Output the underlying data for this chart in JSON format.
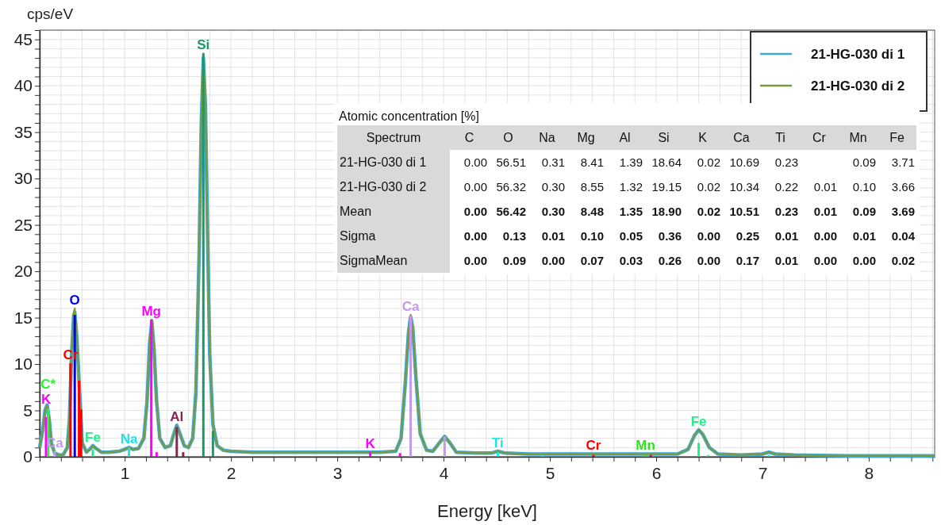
{
  "chart_data": [
    {
      "type": "line",
      "xlabel": "Energy [keV]",
      "ylabel": "cps/eV",
      "xlim": [
        0.2,
        8.62
      ],
      "ylim": [
        0,
        46
      ],
      "grid": true,
      "legend": "top right",
      "xticks": [
        {
          "value": 0.2,
          "label": null
        },
        {
          "value": 0.4,
          "label": null
        },
        {
          "value": 0.6,
          "label": null
        },
        {
          "value": 0.8,
          "label": null
        },
        1,
        {
          "value": 1.2,
          "label": null
        },
        {
          "value": 1.4,
          "label": null
        },
        {
          "value": 1.6,
          "label": null
        },
        {
          "value": 1.8,
          "label": null
        },
        2,
        {
          "value": 2.2,
          "label": null
        },
        {
          "value": 2.4,
          "label": null
        },
        {
          "value": 2.6,
          "label": null
        },
        {
          "value": 2.8,
          "label": null
        },
        3,
        {
          "value": 3.2,
          "label": null
        },
        {
          "value": 3.4,
          "label": null
        },
        {
          "value": 3.6,
          "label": null
        },
        {
          "value": 3.8,
          "label": null
        },
        4,
        {
          "value": 4.2,
          "label": null
        },
        {
          "value": 4.4,
          "label": null
        },
        {
          "value": 4.6,
          "label": null
        },
        {
          "value": 4.8,
          "label": null
        },
        5,
        {
          "value": 5.2,
          "label": null
        },
        {
          "value": 5.4,
          "label": null
        },
        {
          "value": 5.6,
          "label": null
        },
        {
          "value": 5.8,
          "label": null
        },
        6,
        {
          "value": 6.2,
          "label": null
        },
        {
          "value": 6.4,
          "label": null
        },
        {
          "value": 6.6,
          "label": null
        },
        {
          "value": 6.8,
          "label": null
        },
        7,
        {
          "value": 7.2,
          "label": null
        },
        {
          "value": 7.4,
          "label": null
        },
        {
          "value": 7.6,
          "label": null
        },
        {
          "value": 7.8,
          "label": null
        },
        8,
        {
          "value": 8.2,
          "label": null
        },
        {
          "value": 8.4,
          "label": null
        },
        {
          "value": 8.6,
          "label": null
        }
      ],
      "yticks": [
        0,
        {
          "value": 1,
          "label": null
        },
        {
          "value": 2,
          "label": null
        },
        {
          "value": 3,
          "label": null
        },
        {
          "value": 4,
          "label": null
        },
        5,
        {
          "value": 6,
          "label": null
        },
        {
          "value": 7,
          "label": null
        },
        {
          "value": 8,
          "label": null
        },
        {
          "value": 9,
          "label": null
        },
        10,
        {
          "value": 11,
          "label": null
        },
        {
          "value": 12,
          "label": null
        },
        {
          "value": 13,
          "label": null
        },
        {
          "value": 14,
          "label": null
        },
        15,
        {
          "value": 16,
          "label": null
        },
        {
          "value": 17,
          "label": null
        },
        {
          "value": 18,
          "label": null
        },
        {
          "value": 19,
          "label": null
        },
        20,
        {
          "value": 21,
          "label": null
        },
        {
          "value": 22,
          "label": null
        },
        {
          "value": 23,
          "label": null
        },
        {
          "value": 24,
          "label": null
        },
        25,
        {
          "value": 26,
          "label": null
        },
        {
          "value": 27,
          "label": null
        },
        {
          "value": 28,
          "label": null
        },
        {
          "value": 29,
          "label": null
        },
        30,
        {
          "value": 31,
          "label": null
        },
        {
          "value": 32,
          "label": null
        },
        {
          "value": 33,
          "label": null
        },
        {
          "value": 34,
          "label": null
        },
        35,
        {
          "value": 36,
          "label": null
        },
        {
          "value": 37,
          "label": null
        },
        {
          "value": 38,
          "label": null
        },
        {
          "value": 39,
          "label": null
        },
        40,
        {
          "value": 41,
          "label": null
        },
        {
          "value": 42,
          "label": null
        },
        {
          "value": 43,
          "label": null
        },
        {
          "value": 44,
          "label": null
        },
        45,
        {
          "value": 46,
          "label": null
        }
      ],
      "x": [
        0.2,
        0.23,
        0.25,
        0.27,
        0.29,
        0.31,
        0.34,
        0.38,
        0.42,
        0.46,
        0.48,
        0.5,
        0.52,
        0.53,
        0.55,
        0.6,
        0.64,
        0.67,
        0.7,
        0.73,
        0.78,
        0.85,
        0.95,
        1.0,
        1.04,
        1.08,
        1.13,
        1.18,
        1.21,
        1.235,
        1.255,
        1.275,
        1.3,
        1.33,
        1.38,
        1.43,
        1.46,
        1.49,
        1.52,
        1.56,
        1.6,
        1.64,
        1.67,
        1.7,
        1.72,
        1.74,
        1.76,
        1.78,
        1.8,
        1.83,
        1.87,
        1.93,
        2.0,
        2.2,
        2.6,
        3.0,
        3.4,
        3.55,
        3.6,
        3.64,
        3.67,
        3.69,
        3.71,
        3.74,
        3.78,
        3.84,
        3.9,
        3.96,
        4.01,
        4.06,
        4.12,
        4.3,
        4.45,
        4.51,
        4.58,
        4.8,
        5.2,
        5.6,
        6.0,
        6.2,
        6.3,
        6.36,
        6.4,
        6.44,
        6.5,
        6.58,
        6.8,
        7.0,
        7.06,
        7.12,
        7.3,
        7.8,
        8.3,
        8.62
      ],
      "series": [
        {
          "name": "21-HG-030 di 1",
          "color": "#3fa9d6",
          "values": [
            1.0,
            3.0,
            5.0,
            5.6,
            4.0,
            1.5,
            0.4,
            0.2,
            0.2,
            1.0,
            4.0,
            11.0,
            15.2,
            15.6,
            12.8,
            1.5,
            0.5,
            0.8,
            1.2,
            0.9,
            0.5,
            0.5,
            0.6,
            0.8,
            1.0,
            0.8,
            0.9,
            2.0,
            6.0,
            12.3,
            14.6,
            11.8,
            6.0,
            2.0,
            1.0,
            1.2,
            2.4,
            3.4,
            2.5,
            1.2,
            1.0,
            2.0,
            7.0,
            21.8,
            35.6,
            43.0,
            37.6,
            23.8,
            11.0,
            3.5,
            1.2,
            0.7,
            0.6,
            0.5,
            0.5,
            0.5,
            0.5,
            0.6,
            2.0,
            8.0,
            13.4,
            15.1,
            13.9,
            8.5,
            2.5,
            0.7,
            0.6,
            1.5,
            2.2,
            1.5,
            0.5,
            0.4,
            0.4,
            0.6,
            0.4,
            0.3,
            0.3,
            0.3,
            0.3,
            0.3,
            0.8,
            2.3,
            2.9,
            2.4,
            1.0,
            0.3,
            0.2,
            0.3,
            0.5,
            0.3,
            0.2,
            0.1,
            0.1,
            0.1
          ]
        },
        {
          "name": "21-HG-030 di 2",
          "color": "#7a9a3c",
          "values": [
            1.0,
            3.0,
            5.0,
            5.5,
            4.0,
            1.5,
            0.4,
            0.2,
            0.2,
            1.0,
            4.0,
            11.0,
            15.5,
            16.0,
            13.0,
            1.5,
            0.5,
            0.8,
            1.2,
            0.9,
            0.5,
            0.5,
            0.6,
            0.8,
            1.0,
            0.8,
            0.9,
            2.0,
            6.0,
            12.5,
            14.8,
            12.0,
            6.0,
            2.0,
            1.0,
            1.2,
            2.3,
            3.3,
            2.4,
            1.2,
            1.0,
            2.0,
            7.0,
            22.0,
            36.0,
            43.5,
            38.0,
            24.0,
            11.0,
            3.5,
            1.2,
            0.7,
            0.6,
            0.5,
            0.5,
            0.5,
            0.5,
            0.6,
            2.0,
            8.0,
            13.5,
            15.3,
            14.0,
            8.5,
            2.5,
            0.7,
            0.6,
            1.5,
            2.2,
            1.5,
            0.5,
            0.4,
            0.4,
            0.6,
            0.4,
            0.3,
            0.3,
            0.3,
            0.3,
            0.3,
            0.8,
            2.3,
            2.9,
            2.4,
            1.0,
            0.3,
            0.2,
            0.3,
            0.5,
            0.3,
            0.2,
            0.1,
            0.1,
            0.1
          ]
        },
        {
          "type": "bar",
          "x": [
            0.26,
            0.28,
            0.34,
            0.49,
            0.53,
            0.57,
            0.59,
            0.7,
            1.04,
            1.25,
            1.3,
            1.49,
            1.55,
            1.74,
            1.83,
            3.31,
            3.59,
            3.69,
            4.01,
            4.51,
            4.93,
            5.41,
            5.9,
            5.95,
            6.4,
            6.49,
            7.06
          ],
          "values": [
            4.3,
            5.2,
            0.6,
            10.1,
            15.3,
            8.2,
            5.1,
            0.8,
            1.0,
            14.8,
            0.5,
            3.2,
            0.5,
            43.5,
            2.8,
            0.5,
            0.4,
            15.2,
            2.2,
            0.5,
            0.2,
            0.2,
            0.2,
            0.2,
            1.5,
            0.2,
            0.2
          ],
          "value_labels": [
            "K",
            "C*",
            "Ca",
            "Cr",
            "O",
            null,
            null,
            "Fe",
            "Na",
            "Mg",
            null,
            "Al",
            null,
            "Si",
            null,
            "K",
            null,
            "Ca",
            null,
            "Ti",
            null,
            "Cr",
            "Mn",
            null,
            "Fe",
            null,
            null
          ],
          "colors": [
            "#ff00ff",
            "#33ee33",
            "#c49af0",
            "#ff0000",
            "#0000ff",
            "#ff0000",
            "#ff0000",
            "#22ee88",
            "#22e0e8",
            "#ff00ff",
            "#ff00ff",
            "#8b2252",
            "#8b2252",
            "#1a9a6a",
            "#1a9a6a",
            "#ff00ff",
            "#ff00ff",
            "#c49af0",
            "#c49af0",
            "#22e0e8",
            "#22e0e8",
            "#ff0000",
            "#33dd22",
            "#ff0000",
            "#22ee88",
            "#22ee88",
            "#22e0e8"
          ]
        }
      ]
    },
    {
      "type": "heatmap",
      "title": "Atomic concentration [%]",
      "ylabel": "Spectrum",
      "categories": [
        "C",
        "O",
        "Na",
        "Mg",
        "Al",
        "Si",
        "K",
        "Ca",
        "Ti",
        "Cr",
        "Mn",
        "Fe"
      ],
      "y_categories": [
        "21-HG-030 di 1",
        "21-HG-030 di 2",
        "Mean",
        "Sigma",
        "SigmaMean"
      ],
      "cells": [
        [
          0,
          56.51,
          0.31,
          8.41,
          1.39,
          18.64,
          0.02,
          10.69,
          0.23,
          null,
          0.09,
          3.71
        ],
        [
          0,
          56.32,
          0.3,
          8.55,
          1.32,
          19.15,
          0.02,
          10.34,
          0.22,
          0.01,
          0.1,
          3.66
        ],
        [
          0,
          56.42,
          0.3,
          8.48,
          1.35,
          18.9,
          0.02,
          10.51,
          0.23,
          0.01,
          0.09,
          3.69
        ],
        [
          0,
          0.13,
          0.01,
          0.1,
          0.05,
          0.36,
          0,
          0.25,
          0.01,
          0,
          0.01,
          0.04
        ],
        [
          0,
          0.09,
          0,
          0.07,
          0.03,
          0.26,
          0,
          0.17,
          0.01,
          0,
          0,
          0.02
        ]
      ],
      "cell_labels": [
        [
          "0.00",
          "56.51",
          "0.31",
          "8.41",
          "1.39",
          "18.64",
          "0.02",
          "10.69",
          "0.23",
          null,
          "0.09",
          "3.71"
        ],
        [
          "0.00",
          "56.32",
          "0.30",
          "8.55",
          "1.32",
          "19.15",
          "0.02",
          "10.34",
          "0.22",
          "0.01",
          "0.10",
          "3.66"
        ],
        [
          "0.00",
          "56.42",
          "0.30",
          "8.48",
          "1.35",
          "18.90",
          "0.02",
          "10.51",
          "0.23",
          "0.01",
          "0.09",
          "3.69"
        ],
        [
          "0.00",
          "0.13",
          "0.01",
          "0.10",
          "0.05",
          "0.36",
          "0.00",
          "0.25",
          "0.01",
          "0.00",
          "0.01",
          "0.04"
        ],
        [
          "0.00",
          "0.09",
          "0.00",
          "0.07",
          "0.03",
          "0.26",
          "0.00",
          "0.17",
          "0.01",
          "0.00",
          "0.00",
          "0.02"
        ]
      ]
    }
  ]
}
